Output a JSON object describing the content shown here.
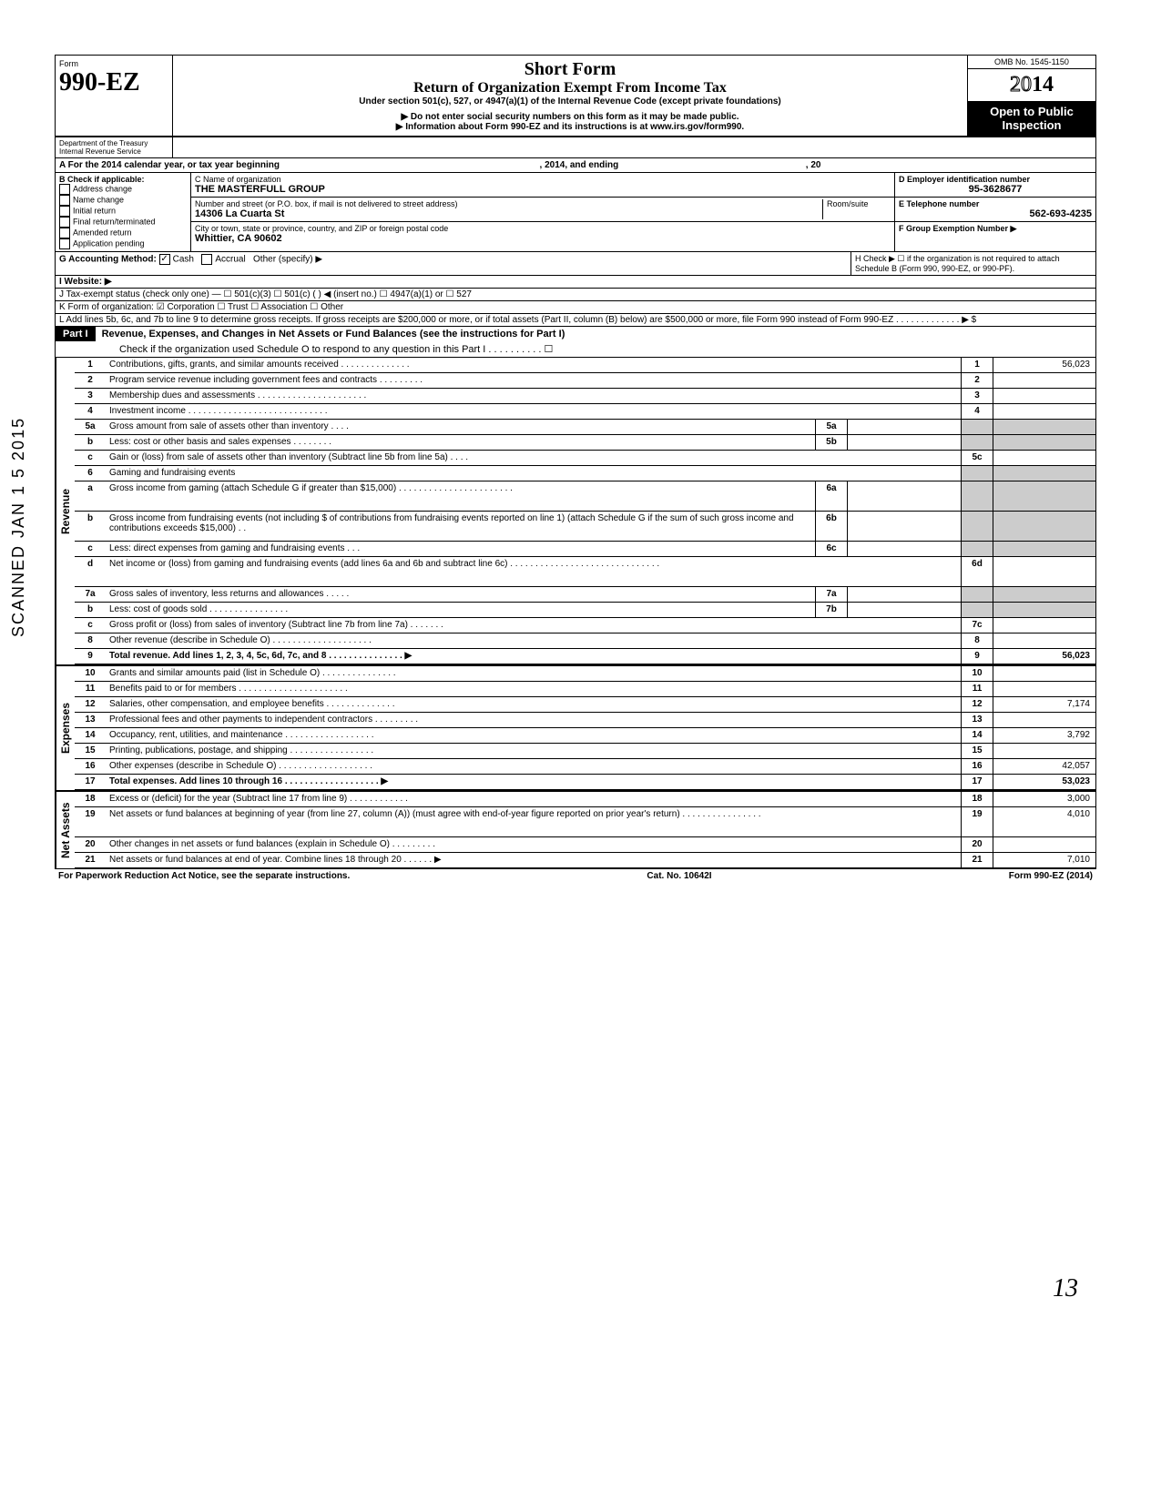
{
  "form": {
    "number_prefix": "Form",
    "number": "990-EZ",
    "omb": "OMB No. 1545-1150",
    "year": "2014",
    "title1": "Short Form",
    "title2": "Return of Organization Exempt From Income Tax",
    "title3": "Under section 501(c), 527, or 4947(a)(1) of the Internal Revenue Code (except private foundations)",
    "warn1": "▶ Do not enter social security numbers on this form as it may be made public.",
    "warn2": "▶ Information about Form 990-EZ and its instructions is at www.irs.gov/form990.",
    "open_public": "Open to Public Inspection",
    "dept1": "Department of the Treasury",
    "dept2": "Internal Revenue Service"
  },
  "header": {
    "line_a": "A For the 2014 calendar year, or tax year beginning",
    "line_a_mid": ", 2014, and ending",
    "line_a_end": ", 20",
    "b_label": "B Check if applicable:",
    "b_items": [
      "Address change",
      "Name change",
      "Initial return",
      "Final return/terminated",
      "Amended return",
      "Application pending"
    ],
    "c_label": "C  Name of organization",
    "c_value": "THE MASTERFULL GROUP",
    "c_addr_label": "Number and street (or P.O. box, if mail is not delivered to street address)",
    "c_room": "Room/suite",
    "c_addr": "14306 La Cuarta St",
    "c_city_label": "City or town, state or province, country, and ZIP or foreign postal code",
    "c_city": "Whittier, CA 90602",
    "d_label": "D Employer identification number",
    "d_value": "95-3628677",
    "e_label": "E Telephone number",
    "e_value": "562-693-4235",
    "f_label": "F Group Exemption Number ▶",
    "g_label": "G Accounting Method:",
    "g_cash": "Cash",
    "g_accrual": "Accrual",
    "g_other": "Other (specify) ▶",
    "h_label": "H Check ▶ ☐ if the organization is not required to attach Schedule B (Form 990, 990-EZ, or 990-PF).",
    "i_label": "I  Website: ▶",
    "j_label": "J Tax-exempt status (check only one) — ☐ 501(c)(3)  ☐ 501(c) (        ) ◀ (insert no.) ☐ 4947(a)(1) or  ☐ 527",
    "k_label": "K Form of organization:   ☑ Corporation    ☐ Trust    ☐ Association    ☐ Other",
    "l_label": "L Add lines 5b, 6c, and 7b to line 9 to determine gross receipts. If gross receipts are $200,000 or more, or if total assets (Part II, column (B) below) are $500,000 or more, file Form 990 instead of Form 990-EZ . . . . . . . . . . . . . ▶  $"
  },
  "part1": {
    "title": "Part I",
    "desc": "Revenue, Expenses, and Changes in Net Assets or Fund Balances (see the instructions for Part I)",
    "check": "Check if the organization used Schedule O to respond to any question in this Part I . . . . . . . . . . ☐"
  },
  "sections": {
    "revenue": "Revenue",
    "expenses": "Expenses",
    "netassets": "Net Assets"
  },
  "lines": [
    {
      "n": "1",
      "d": "Contributions, gifts, grants, and similar amounts received . . . . . . . . . . . . . .",
      "rn": "1",
      "rv": "56,023"
    },
    {
      "n": "2",
      "d": "Program service revenue including government fees and contracts . . . . . . . . .",
      "rn": "2",
      "rv": ""
    },
    {
      "n": "3",
      "d": "Membership dues and assessments . . . . . . . . . . . . . . . . . . . . . .",
      "rn": "3",
      "rv": ""
    },
    {
      "n": "4",
      "d": "Investment income . . . . . . . . . . . . . . . . . . . . . . . . . . . .",
      "rn": "4",
      "rv": ""
    },
    {
      "n": "5a",
      "d": "Gross amount from sale of assets other than inventory . . . .",
      "mn": "5a",
      "mv": "",
      "shaded": true
    },
    {
      "n": "b",
      "d": "Less: cost or other basis and sales expenses . . . . . . . .",
      "mn": "5b",
      "mv": "",
      "shaded": true
    },
    {
      "n": "c",
      "d": "Gain or (loss) from sale of assets other than inventory (Subtract line 5b from line 5a) . . . .",
      "rn": "5c",
      "rv": ""
    },
    {
      "n": "6",
      "d": "Gaming and fundraising events",
      "shaded": true
    },
    {
      "n": "a",
      "d": "Gross income from gaming (attach Schedule G if greater than $15,000) . . . . . . . . . . . . . . . . . . . . . . .",
      "mn": "6a",
      "mv": "",
      "shaded": true,
      "tall": true
    },
    {
      "n": "b",
      "d": "Gross income from fundraising events (not including  $                    of contributions from fundraising events reported on line 1) (attach Schedule G if the sum of such gross income and contributions exceeds $15,000) . .",
      "mn": "6b",
      "mv": "",
      "shaded": true,
      "tall": true
    },
    {
      "n": "c",
      "d": "Less: direct expenses from gaming and fundraising events . . .",
      "mn": "6c",
      "mv": "",
      "shaded": true
    },
    {
      "n": "d",
      "d": "Net income or (loss) from gaming and fundraising events (add lines 6a and 6b and subtract line 6c) . . . . . . . . . . . . . . . . . . . . . . . . . . . . . .",
      "rn": "6d",
      "rv": "",
      "tall": true
    },
    {
      "n": "7a",
      "d": "Gross sales of inventory, less returns and allowances . . . . .",
      "mn": "7a",
      "mv": "",
      "shaded": true
    },
    {
      "n": "b",
      "d": "Less: cost of goods sold . . . . . . . . . . . . . . . .",
      "mn": "7b",
      "mv": "",
      "shaded": true
    },
    {
      "n": "c",
      "d": "Gross profit or (loss) from sales of inventory (Subtract line 7b from line 7a) . . . . . . .",
      "rn": "7c",
      "rv": ""
    },
    {
      "n": "8",
      "d": "Other revenue (describe in Schedule O) . . . . . . . . . . . . . . . . . . . .",
      "rn": "8",
      "rv": ""
    },
    {
      "n": "9",
      "d": "Total revenue. Add lines 1, 2, 3, 4, 5c, 6d, 7c, and 8 . . . . . . . . . . . . . . . ▶",
      "rn": "9",
      "rv": "56,023",
      "bold": true
    }
  ],
  "exp_lines": [
    {
      "n": "10",
      "d": "Grants and similar amounts paid (list in Schedule O) . . . . . . . . . . . . . . .",
      "rn": "10",
      "rv": ""
    },
    {
      "n": "11",
      "d": "Benefits paid to or for members . . . . . . . . . . . . . . . . . . . . . .",
      "rn": "11",
      "rv": ""
    },
    {
      "n": "12",
      "d": "Salaries, other compensation, and employee benefits . . . . . . . . . . . . . .",
      "rn": "12",
      "rv": "7,174"
    },
    {
      "n": "13",
      "d": "Professional fees and other payments to independent contractors . . . . . . . . .",
      "rn": "13",
      "rv": ""
    },
    {
      "n": "14",
      "d": "Occupancy, rent, utilities, and maintenance . . . . . . . . . . . . . . . . . .",
      "rn": "14",
      "rv": "3,792"
    },
    {
      "n": "15",
      "d": "Printing, publications, postage, and shipping . . . . . . . . . . . . . . . . .",
      "rn": "15",
      "rv": ""
    },
    {
      "n": "16",
      "d": "Other expenses (describe in Schedule O) . . . . . . . . . . . . . . . . . . .",
      "rn": "16",
      "rv": "42,057"
    },
    {
      "n": "17",
      "d": "Total expenses. Add lines 10 through 16 . . . . . . . . . . . . . . . . . . . ▶",
      "rn": "17",
      "rv": "53,023",
      "bold": true
    }
  ],
  "na_lines": [
    {
      "n": "18",
      "d": "Excess or (deficit) for the year (Subtract line 17 from line 9) . . . . . . . . . . . .",
      "rn": "18",
      "rv": "3,000"
    },
    {
      "n": "19",
      "d": "Net assets or fund balances at beginning of year (from line 27, column (A)) (must agree with end-of-year figure reported on prior year's return) . . . . . . . . . . . . . . . .",
      "rn": "19",
      "rv": "4,010",
      "tall": true
    },
    {
      "n": "20",
      "d": "Other changes in net assets or fund balances (explain in Schedule O) . . . . . . . . .",
      "rn": "20",
      "rv": ""
    },
    {
      "n": "21",
      "d": "Net assets or fund balances at end of year. Combine lines 18 through 20 . . . . . . ▶",
      "rn": "21",
      "rv": "7,010"
    }
  ],
  "footer": {
    "left": "For Paperwork Reduction Act Notice, see the separate instructions.",
    "mid": "Cat. No. 10642I",
    "right": "Form 990-EZ (2014)"
  },
  "stamp": "SCANNED JAN 1 5 2015",
  "page_num": "13"
}
